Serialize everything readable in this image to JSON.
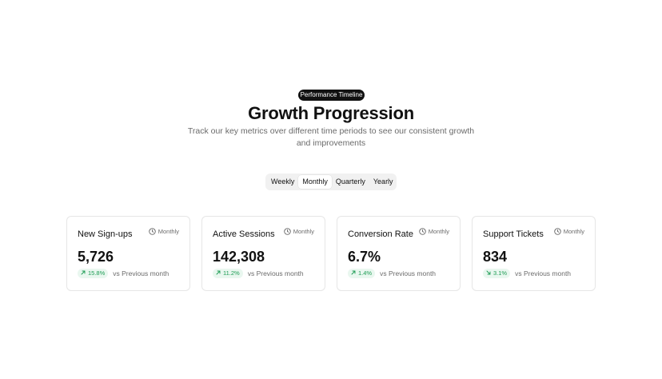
{
  "header": {
    "badge": "Performance Timeline",
    "title": "Growth Progression",
    "subtitle": "Track our key metrics over different time periods to see our consistent growth and improvements"
  },
  "period_tabs": {
    "items": [
      {
        "label": "Weekly",
        "active": false
      },
      {
        "label": "Monthly",
        "active": true
      },
      {
        "label": "Quarterly",
        "active": false
      },
      {
        "label": "Yearly",
        "active": false
      }
    ]
  },
  "metrics": [
    {
      "title": "New Sign-ups",
      "period": "Monthly",
      "value": "5,726",
      "change": "15.8%",
      "direction": "up",
      "compare": "vs Previous month"
    },
    {
      "title": "Active Sessions",
      "period": "Monthly",
      "value": "142,308",
      "change": "11.2%",
      "direction": "up",
      "compare": "vs Previous month"
    },
    {
      "title": "Conversion Rate",
      "period": "Monthly",
      "value": "6.7%",
      "change": "1.4%",
      "direction": "up",
      "compare": "vs Previous month"
    },
    {
      "title": "Support Tickets",
      "period": "Monthly",
      "value": "834",
      "change": "3.1%",
      "direction": "down",
      "compare": "vs Previous month"
    }
  ],
  "colors": {
    "badge_bg": "#111111",
    "positive_text": "#1f9d55",
    "positive_bg": "#e9f7ef",
    "muted_text": "#6b6b6b",
    "card_border": "#e6e6e6"
  },
  "icons": {
    "period": "clock-icon",
    "change_up": "arrow-up-right-icon",
    "change_down": "arrow-down-right-icon"
  }
}
